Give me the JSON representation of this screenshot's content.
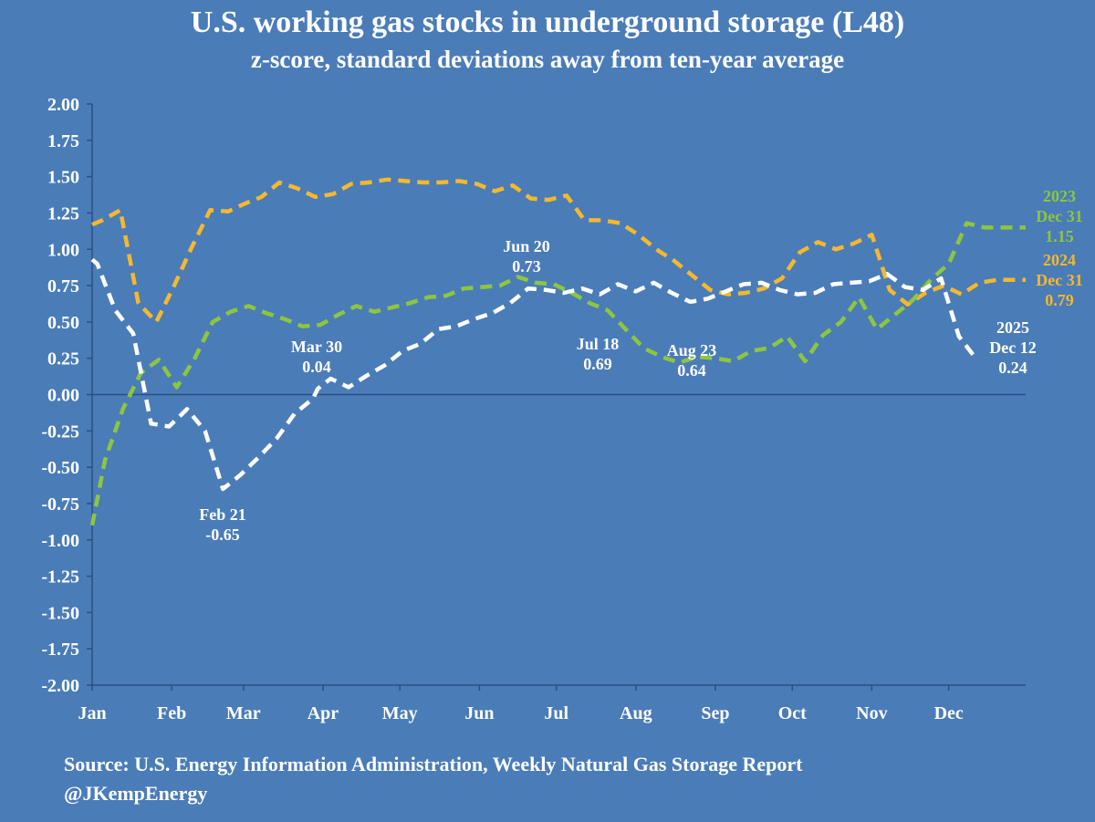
{
  "chart_data": {
    "type": "line",
    "title": "U.S. working gas stocks in underground storage (L48)",
    "subtitle": "z-score, standard deviations away from ten-year average",
    "ylim": [
      -2.0,
      2.0
    ],
    "y_ticks": [
      "2.00",
      "1.75",
      "1.50",
      "1.25",
      "1.00",
      "0.75",
      "0.50",
      "0.25",
      "0.00",
      "-0.25",
      "-0.50",
      "-0.75",
      "-1.00",
      "-1.25",
      "-1.50",
      "-1.75",
      "-2.00"
    ],
    "x_ticks": [
      "Jan",
      "Feb",
      "Mar",
      "Apr",
      "May",
      "Jun",
      "Jul",
      "Aug",
      "Sep",
      "Oct",
      "Nov",
      "Dec"
    ],
    "grid": false,
    "series": [
      {
        "name": "2024",
        "color": "#f5b82e",
        "x": [
          "Jan 1",
          "Jan 5",
          "Jan 12",
          "Jan 19",
          "Jan 26",
          "Feb 2",
          "Feb 9",
          "Feb 16",
          "Feb 23",
          "Mar 1",
          "Mar 8",
          "Mar 15",
          "Mar 22",
          "Mar 29",
          "Apr 5",
          "Apr 12",
          "Apr 19",
          "Apr 26",
          "May 3",
          "May 10",
          "May 17",
          "May 24",
          "May 31",
          "Jun 7",
          "Jun 14",
          "Jun 21",
          "Jun 28",
          "Jul 5",
          "Jul 12",
          "Jul 19",
          "Jul 26",
          "Aug 2",
          "Aug 9",
          "Aug 16",
          "Aug 23",
          "Aug 30",
          "Sep 6",
          "Sep 13",
          "Sep 20",
          "Sep 27",
          "Oct 4",
          "Oct 11",
          "Oct 18",
          "Oct 25",
          "Nov 1",
          "Nov 8",
          "Nov 15",
          "Nov 22",
          "Nov 29",
          "Dec 6",
          "Dec 13",
          "Dec 20",
          "Dec 27",
          "Dec 31"
        ],
        "y": [
          1.17,
          1.2,
          1.27,
          0.63,
          0.5,
          0.75,
          1.02,
          1.27,
          1.26,
          1.31,
          1.36,
          1.46,
          1.42,
          1.36,
          1.38,
          1.45,
          1.46,
          1.48,
          1.47,
          1.46,
          1.46,
          1.47,
          1.45,
          1.4,
          1.44,
          1.35,
          1.34,
          1.37,
          1.2,
          1.2,
          1.18,
          1.1,
          1.0,
          0.92,
          0.82,
          0.72,
          0.69,
          0.7,
          0.73,
          0.8,
          0.98,
          1.05,
          1.0,
          1.04,
          1.1,
          0.72,
          0.62,
          0.7,
          0.75,
          0.69,
          0.77,
          0.79,
          0.79,
          0.79
        ]
      },
      {
        "name": "2023",
        "color": "#8dc63f",
        "x": [
          "Jan 1",
          "Jan 6",
          "Jan 13",
          "Jan 20",
          "Jan 27",
          "Feb 3",
          "Feb 10",
          "Feb 17",
          "Feb 24",
          "Mar 3",
          "Mar 10",
          "Mar 17",
          "Mar 24",
          "Mar 31",
          "Apr 7",
          "Apr 14",
          "Apr 21",
          "Apr 28",
          "May 5",
          "May 12",
          "May 19",
          "May 26",
          "Jun 2",
          "Jun 9",
          "Jun 16",
          "Jun 23",
          "Jun 30",
          "Jul 7",
          "Jul 14",
          "Jul 21",
          "Jul 28",
          "Aug 4",
          "Aug 11",
          "Aug 18",
          "Aug 25",
          "Sep 1",
          "Sep 8",
          "Sep 15",
          "Sep 22",
          "Sep 29",
          "Oct 6",
          "Oct 13",
          "Oct 20",
          "Oct 27",
          "Nov 3",
          "Nov 10",
          "Nov 17",
          "Nov 24",
          "Dec 1",
          "Dec 8",
          "Dec 15",
          "Dec 22",
          "Dec 29",
          "Dec 31"
        ],
        "y": [
          -0.9,
          -0.45,
          -0.1,
          0.15,
          0.24,
          0.05,
          0.25,
          0.5,
          0.57,
          0.61,
          0.56,
          0.52,
          0.47,
          0.48,
          0.55,
          0.61,
          0.57,
          0.6,
          0.63,
          0.67,
          0.68,
          0.73,
          0.74,
          0.75,
          0.81,
          0.77,
          0.76,
          0.7,
          0.63,
          0.58,
          0.45,
          0.32,
          0.26,
          0.22,
          0.26,
          0.25,
          0.23,
          0.3,
          0.32,
          0.4,
          0.23,
          0.41,
          0.5,
          0.67,
          0.45,
          0.55,
          0.65,
          0.79,
          0.9,
          1.18,
          1.15,
          1.15,
          1.15,
          1.15
        ]
      },
      {
        "name": "2025",
        "color": "#ffffff",
        "x": [
          "Jan 1",
          "Jan 3",
          "Jan 10",
          "Jan 17",
          "Jan 24",
          "Jan 31",
          "Feb 7",
          "Feb 14",
          "Feb 21",
          "Feb 28",
          "Mar 7",
          "Mar 14",
          "Mar 21",
          "Mar 28",
          "Mar 30",
          "Apr 4",
          "Apr 11",
          "Apr 18",
          "Apr 25",
          "May 2",
          "May 9",
          "May 16",
          "May 23",
          "May 30",
          "Jun 6",
          "Jun 13",
          "Jun 20",
          "Jun 27",
          "Jul 4",
          "Jul 11",
          "Jul 18",
          "Jul 25",
          "Aug 1",
          "Aug 8",
          "Aug 15",
          "Aug 22",
          "Aug 23",
          "Aug 29",
          "Sep 5",
          "Sep 12",
          "Sep 19",
          "Sep 26",
          "Oct 3",
          "Oct 10",
          "Oct 17",
          "Oct 24",
          "Oct 31",
          "Nov 7",
          "Nov 14",
          "Nov 21",
          "Nov 28",
          "Dec 5",
          "Dec 12"
        ],
        "y": [
          0.93,
          0.9,
          0.58,
          0.42,
          -0.2,
          -0.22,
          -0.1,
          -0.25,
          -0.65,
          -0.55,
          -0.43,
          -0.3,
          -0.13,
          -0.03,
          0.04,
          0.11,
          0.05,
          0.13,
          0.2,
          0.3,
          0.35,
          0.45,
          0.47,
          0.52,
          0.56,
          0.63,
          0.73,
          0.72,
          0.7,
          0.73,
          0.69,
          0.76,
          0.71,
          0.77,
          0.7,
          0.64,
          0.64,
          0.66,
          0.71,
          0.76,
          0.77,
          0.72,
          0.69,
          0.7,
          0.76,
          0.77,
          0.78,
          0.83,
          0.74,
          0.72,
          0.8,
          0.4,
          0.24
        ]
      }
    ],
    "annotations": [
      {
        "series": "2025",
        "lines": [
          "Feb 21",
          "-0.65"
        ],
        "color": "#ffffff"
      },
      {
        "series": "2025",
        "lines": [
          "Mar 30",
          "0.04"
        ],
        "color": "#ffffff"
      },
      {
        "series": "2025",
        "lines": [
          "Jun 20",
          "0.73"
        ],
        "color": "#ffffff"
      },
      {
        "series": "2025",
        "lines": [
          "Jul 18",
          "0.69"
        ],
        "color": "#ffffff"
      },
      {
        "series": "2025",
        "lines": [
          "Aug 23",
          "0.64"
        ],
        "color": "#ffffff"
      },
      {
        "series": "2025",
        "lines": [
          "2025",
          "Dec 12",
          "0.24"
        ],
        "color": "#ffffff"
      },
      {
        "series": "2023",
        "lines": [
          "2023",
          "Dec 31",
          "1.15"
        ],
        "color": "#8dc63f"
      },
      {
        "series": "2024",
        "lines": [
          "2024",
          "Dec 31",
          "0.79"
        ],
        "color": "#f5b82e"
      }
    ]
  },
  "footer": {
    "source": "Source: U.S. Energy Information Administration, Weekly Natural Gas Storage Report",
    "handle": "@JKempEnergy"
  },
  "colors": {
    "background": "#4a7cb8",
    "axis": "#2b4f82",
    "text": "#ffffff"
  }
}
